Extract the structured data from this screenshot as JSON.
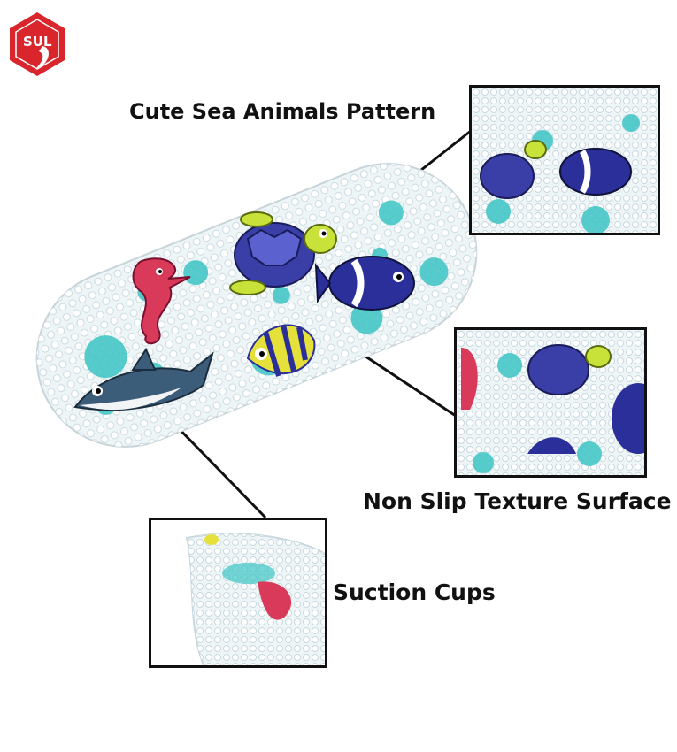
{
  "brand": {
    "logo_text": "SUL",
    "colors": {
      "logo_red": "#d9262c"
    }
  },
  "labels": {
    "pattern": "Cute Sea Animals Pattern",
    "texture": "Non Slip Texture Surface",
    "suction": "Suction Cups"
  },
  "product": {
    "name_icons": [
      "seahorse-icon",
      "turtle-icon",
      "blue-fish-icon",
      "yellow-striped-fish-icon",
      "shark-icon"
    ],
    "colors": {
      "teal_bubble": "#3cc4c4",
      "clear_mat": "#e9f2f5",
      "line": "#111111"
    }
  }
}
